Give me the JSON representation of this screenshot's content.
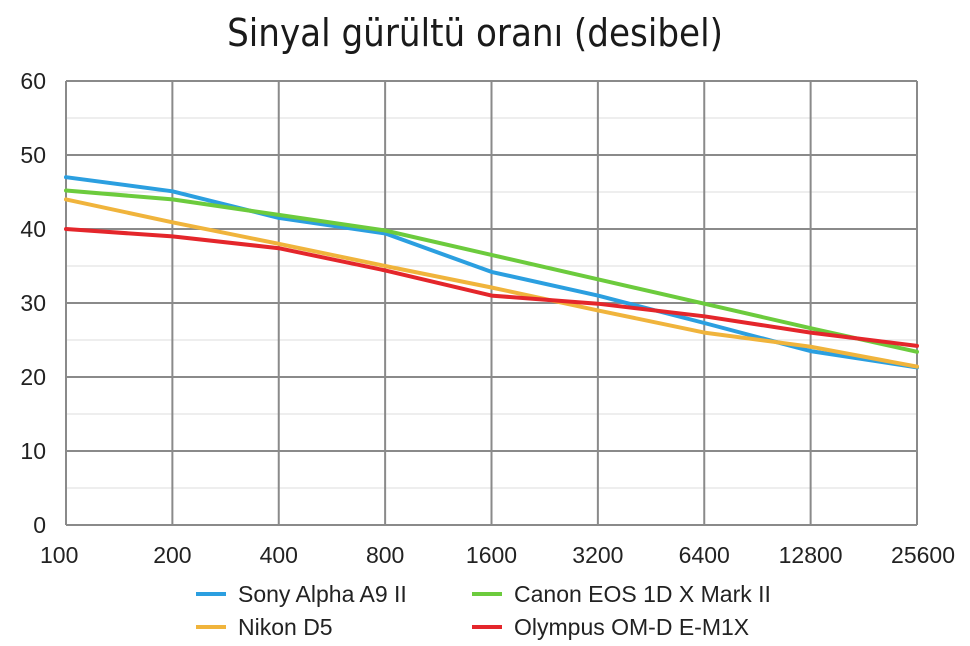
{
  "chart_data": {
    "type": "line",
    "title": "Sinyal gürültü oranı (desibel)",
    "xlabel": "",
    "ylabel": "",
    "categories": [
      "100",
      "200",
      "400",
      "800",
      "1600",
      "3200",
      "6400",
      "12800",
      "25600"
    ],
    "ylim": [
      0,
      60
    ],
    "yticks": [
      0,
      10,
      20,
      30,
      40,
      50,
      60
    ],
    "grid": true,
    "legend_position": "bottom",
    "series": [
      {
        "name": "Sony Alpha A9 II",
        "color": "#2b9fe0",
        "values": [
          47,
          45.1,
          41.5,
          39.4,
          34.2,
          31,
          27.3,
          23.5,
          21.3
        ]
      },
      {
        "name": "Canon EOS 1D X Mark II",
        "color": "#6ccb3d",
        "values": [
          45.2,
          44,
          41.9,
          39.8,
          36.5,
          33.2,
          29.9,
          26.6,
          23.4
        ]
      },
      {
        "name": "Nikon D5",
        "color": "#f0b43c",
        "values": [
          44,
          40.9,
          38,
          35,
          32.1,
          29,
          26,
          24.1,
          21.4
        ]
      },
      {
        "name": "Olympus OM-D E-M1X",
        "color": "#e4262b",
        "values": [
          40,
          39,
          37.4,
          34.4,
          31,
          29.9,
          28.2,
          26,
          24.2
        ]
      }
    ]
  }
}
